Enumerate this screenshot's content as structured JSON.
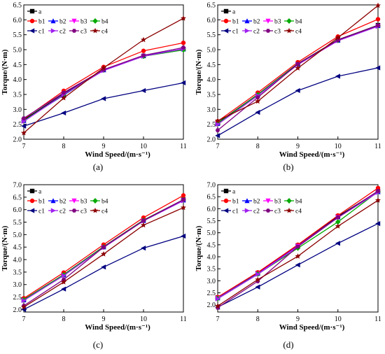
{
  "chart_data": [
    {
      "type": "line",
      "caption": "(a)",
      "xlabel": "Wind Speed/(m·s⁻¹)",
      "ylabel": "Torque/(N·m)",
      "x": [
        7,
        8,
        9,
        10,
        11
      ],
      "xticks": [
        "7",
        "8",
        "9",
        "10",
        "11"
      ],
      "yticks": [
        "2.0",
        "2.5",
        "3.0",
        "3.5",
        "4.0",
        "4.5",
        "5.0",
        "5.5",
        "6.0",
        "6.5"
      ],
      "xlim": [
        7,
        11
      ],
      "ylim": [
        2.0,
        6.5
      ],
      "legend_position": "top-left",
      "series": [
        {
          "name": "a",
          "values": [
            2.65,
            3.52,
            4.33,
            4.79,
            5.02
          ]
        },
        {
          "name": "b1",
          "values": [
            2.68,
            3.62,
            4.42,
            4.96,
            5.23
          ]
        },
        {
          "name": "b2",
          "values": [
            2.62,
            3.48,
            4.32,
            4.8,
            5.02
          ]
        },
        {
          "name": "b3",
          "values": [
            2.6,
            3.5,
            4.31,
            4.78,
            5.0
          ]
        },
        {
          "name": "b4",
          "values": [
            2.62,
            3.49,
            4.32,
            4.78,
            4.99
          ]
        },
        {
          "name": "c1",
          "values": [
            2.44,
            2.88,
            3.36,
            3.63,
            3.89
          ]
        },
        {
          "name": "c2",
          "values": [
            2.6,
            3.5,
            4.3,
            4.78,
            5.03
          ]
        },
        {
          "name": "c3",
          "values": [
            2.7,
            3.56,
            4.33,
            4.81,
            5.07
          ]
        },
        {
          "name": "c4",
          "values": [
            2.21,
            3.38,
            4.39,
            5.33,
            6.05
          ]
        }
      ]
    },
    {
      "type": "line",
      "caption": "(b)",
      "xlabel": "Wind Speed/(m·s⁻¹)",
      "ylabel": "Torque/(N·m)",
      "x": [
        7,
        8,
        9,
        10,
        11
      ],
      "xticks": [
        "7",
        "8",
        "9",
        "10",
        "11"
      ],
      "yticks": [
        "2.0",
        "2.5",
        "3.0",
        "3.5",
        "4.0",
        "4.5",
        "5.0",
        "5.5",
        "6.0",
        "6.5"
      ],
      "xlim": [
        7,
        11
      ],
      "ylim": [
        2.0,
        6.5
      ],
      "legend_position": "top-left",
      "series": [
        {
          "name": "a",
          "values": [
            2.55,
            3.5,
            4.53,
            5.33,
            5.82
          ]
        },
        {
          "name": "b1",
          "values": [
            2.6,
            3.56,
            4.58,
            5.44,
            6.02
          ]
        },
        {
          "name": "b2",
          "values": [
            2.52,
            3.48,
            4.51,
            5.31,
            5.8
          ]
        },
        {
          "name": "b3",
          "values": [
            2.51,
            3.47,
            4.5,
            5.3,
            5.79
          ]
        },
        {
          "name": "b4",
          "values": [
            2.53,
            3.49,
            4.51,
            5.31,
            5.8
          ]
        },
        {
          "name": "c1",
          "values": [
            2.12,
            2.9,
            3.63,
            4.11,
            4.39
          ]
        },
        {
          "name": "c2",
          "values": [
            2.5,
            3.46,
            4.5,
            5.3,
            5.78
          ]
        },
        {
          "name": "c3",
          "values": [
            2.3,
            3.4,
            4.52,
            5.32,
            5.81
          ]
        },
        {
          "name": "c4",
          "values": [
            2.62,
            3.27,
            4.38,
            5.4,
            6.48
          ]
        }
      ]
    },
    {
      "type": "line",
      "caption": "(c)",
      "xlabel": "Wind Speed/(m·s⁻¹)",
      "ylabel": "Torque/(N·m)",
      "x": [
        7,
        8,
        9,
        10,
        11
      ],
      "xticks": [
        "7",
        "8",
        "9",
        "10",
        "11"
      ],
      "yticks": [
        "2.0",
        "2.5",
        "3.0",
        "3.5",
        "4.0",
        "4.5",
        "5.0",
        "5.5",
        "6.0",
        "6.5",
        "7.0"
      ],
      "xlim": [
        7,
        11
      ],
      "ylim": [
        1.9,
        7.0
      ],
      "legend_position": "top-left",
      "series": [
        {
          "name": "a",
          "values": [
            2.4,
            3.4,
            4.52,
            5.58,
            6.4
          ]
        },
        {
          "name": "b1",
          "values": [
            2.45,
            3.48,
            4.6,
            5.68,
            6.57
          ]
        },
        {
          "name": "b2",
          "values": [
            2.38,
            3.38,
            4.5,
            5.56,
            6.38
          ]
        },
        {
          "name": "b3",
          "values": [
            2.37,
            3.37,
            4.49,
            5.55,
            6.37
          ]
        },
        {
          "name": "b4",
          "values": [
            2.39,
            3.39,
            4.51,
            5.57,
            6.39
          ]
        },
        {
          "name": "c1",
          "values": [
            2.0,
            2.82,
            3.7,
            4.46,
            4.94
          ]
        },
        {
          "name": "c2",
          "values": [
            2.36,
            3.36,
            4.48,
            5.55,
            6.36
          ]
        },
        {
          "name": "c3",
          "values": [
            2.15,
            3.2,
            4.5,
            5.56,
            6.4
          ]
        },
        {
          "name": "c4",
          "values": [
            2.1,
            3.1,
            4.22,
            5.38,
            6.08
          ]
        }
      ]
    },
    {
      "type": "line",
      "caption": "(d)",
      "xlabel": "Wind Speed/(m·s⁻¹)",
      "ylabel": "Torque/(N·m)",
      "x": [
        7,
        8,
        9,
        10,
        11
      ],
      "xticks": [
        "7",
        "8",
        "9",
        "10",
        "11"
      ],
      "yticks": [
        "2.0",
        "2.5",
        "3.0",
        "3.5",
        "4.0",
        "4.5",
        "5.0",
        "5.5",
        "6.0",
        "6.5",
        "7.0"
      ],
      "xlim": [
        7,
        11
      ],
      "ylim": [
        1.7,
        7.0
      ],
      "legend_position": "top-left",
      "series": [
        {
          "name": "a",
          "values": [
            2.3,
            3.32,
            4.47,
            5.68,
            6.72
          ]
        },
        {
          "name": "b1",
          "values": [
            2.32,
            3.35,
            4.5,
            5.72,
            6.86
          ]
        },
        {
          "name": "b2",
          "values": [
            2.28,
            3.3,
            4.45,
            5.65,
            6.7
          ]
        },
        {
          "name": "b3",
          "values": [
            2.27,
            3.29,
            4.44,
            5.64,
            6.69
          ]
        },
        {
          "name": "b4",
          "values": [
            2.26,
            3.28,
            4.36,
            5.45,
            6.71
          ]
        },
        {
          "name": "c1",
          "values": [
            1.9,
            2.74,
            3.66,
            4.56,
            5.38
          ]
        },
        {
          "name": "c2",
          "values": [
            2.25,
            3.27,
            4.43,
            5.63,
            6.68
          ]
        },
        {
          "name": "c3",
          "values": [
            1.88,
            2.98,
            4.42,
            5.64,
            6.74
          ]
        },
        {
          "name": "c4",
          "values": [
            1.95,
            3.05,
            4.02,
            5.27,
            6.35
          ]
        }
      ]
    }
  ],
  "series_style": {
    "a": {
      "color": "#000000",
      "marker": "square"
    },
    "b1": {
      "color": "#ff0000",
      "marker": "circle"
    },
    "b2": {
      "color": "#0000ff",
      "marker": "triangle-up"
    },
    "b3": {
      "color": "#ff00ff",
      "marker": "triangle-down"
    },
    "b4": {
      "color": "#00aa00",
      "marker": "diamond"
    },
    "c1": {
      "color": "#000080",
      "marker": "triangle-left"
    },
    "c2": {
      "color": "#a020f0",
      "marker": "triangle-right"
    },
    "c3": {
      "color": "#800080",
      "marker": "hexagon"
    },
    "c4": {
      "color": "#8b0000",
      "marker": "star"
    }
  }
}
